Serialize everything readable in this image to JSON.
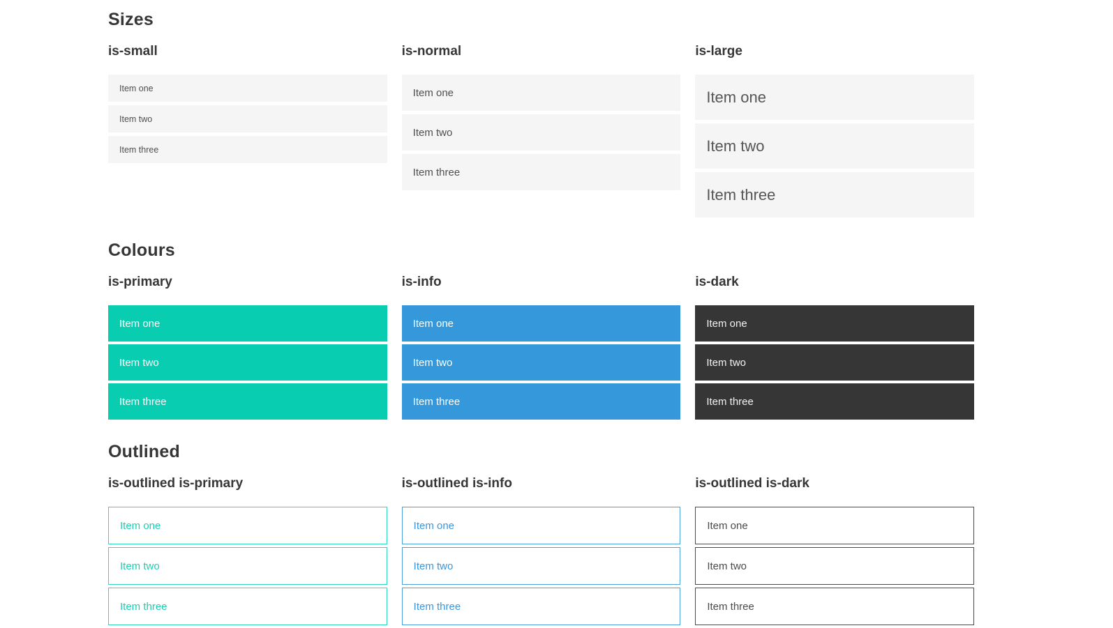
{
  "colors": {
    "primary": "#09cdb0",
    "info": "#3598db",
    "dark": "#363636",
    "light_row_background": "#f5f5f5",
    "heading_text": "#363636",
    "row_text": "#4f4f4f",
    "row_text_on_color": "#ffffff"
  },
  "sections": [
    {
      "title": "Sizes",
      "groups": [
        {
          "heading": "is-small",
          "items": [
            "Item one",
            "Item two",
            "Item three"
          ]
        },
        {
          "heading": "is-normal",
          "items": [
            "Item one",
            "Item two",
            "Item three"
          ]
        },
        {
          "heading": "is-large",
          "items": [
            "Item one",
            "Item two",
            "Item three"
          ]
        }
      ]
    },
    {
      "title": "Colours",
      "groups": [
        {
          "heading": "is-primary",
          "items": [
            "Item one",
            "Item two",
            "Item three"
          ]
        },
        {
          "heading": "is-info",
          "items": [
            "Item one",
            "Item two",
            "Item three"
          ]
        },
        {
          "heading": "is-dark",
          "items": [
            "Item one",
            "Item two",
            "Item three"
          ]
        }
      ]
    },
    {
      "title": "Outlined",
      "groups": [
        {
          "heading": "is-outlined is-primary",
          "items": [
            "Item one",
            "Item two",
            "Item three"
          ]
        },
        {
          "heading": "is-outlined is-info",
          "items": [
            "Item one",
            "Item two",
            "Item three"
          ]
        },
        {
          "heading": "is-outlined is-dark",
          "items": [
            "Item one",
            "Item two",
            "Item three"
          ]
        }
      ]
    }
  ]
}
